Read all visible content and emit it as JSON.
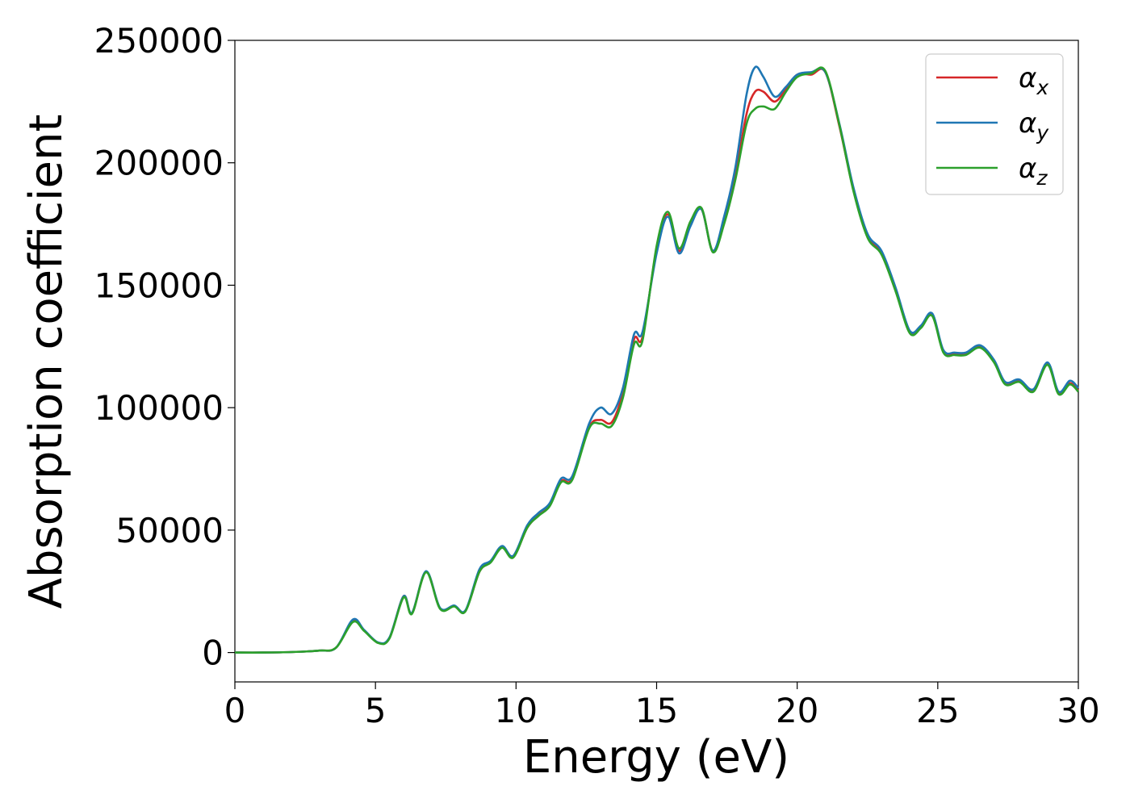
{
  "chart_data": {
    "type": "line",
    "title": "",
    "xlabel": "Energy (eV)",
    "ylabel": "Absorption coefficient",
    "xlim": [
      0,
      30
    ],
    "ylim": [
      -12000,
      250000
    ],
    "xticks": [
      0,
      5,
      10,
      15,
      20,
      25,
      30
    ],
    "yticks": [
      0,
      50000,
      100000,
      150000,
      200000,
      250000
    ],
    "grid": false,
    "legend": {
      "placement": "top-right"
    },
    "x": [
      0,
      1,
      2,
      3,
      3.6,
      4.2,
      4.6,
      5.1,
      5.5,
      6.0,
      6.3,
      6.8,
      7.3,
      7.8,
      8.2,
      8.7,
      9.1,
      9.5,
      9.9,
      10.4,
      10.8,
      11.2,
      11.6,
      12.0,
      12.6,
      13.0,
      13.4,
      13.8,
      14.2,
      14.5,
      15.0,
      15.4,
      15.8,
      16.2,
      16.6,
      17.0,
      17.4,
      17.8,
      18.2,
      18.5,
      18.8,
      19.2,
      19.6,
      20.0,
      20.5,
      21.0,
      21.5,
      22.0,
      22.5,
      23.0,
      23.5,
      24.0,
      24.4,
      24.8,
      25.2,
      25.6,
      26.0,
      26.5,
      27.0,
      27.4,
      27.9,
      28.4,
      28.9,
      29.3,
      29.7,
      30.0
    ],
    "series": [
      {
        "name": "α_x",
        "color": "#d62728",
        "values": [
          0,
          0,
          200,
          800,
          2000,
          13000,
          9000,
          4000,
          6000,
          23000,
          16000,
          33000,
          18000,
          19000,
          17000,
          33000,
          37000,
          43000,
          39000,
          51000,
          56000,
          60000,
          70000,
          71000,
          92000,
          95000,
          94000,
          106000,
          128000,
          129000,
          165000,
          179000,
          164000,
          175000,
          181000,
          164000,
          176000,
          195000,
          220000,
          229000,
          229000,
          225000,
          230000,
          236000,
          236000,
          237000,
          215000,
          189000,
          170000,
          163000,
          148000,
          131000,
          133000,
          138000,
          123000,
          122000,
          122000,
          125000,
          119000,
          110000,
          111000,
          107000,
          118000,
          106000,
          110000,
          107000
        ]
      },
      {
        "name": "α_y",
        "color": "#1f77b4",
        "values": [
          0,
          0,
          200,
          800,
          2000,
          13500,
          9200,
          4100,
          6200,
          23000,
          16200,
          33200,
          18200,
          19200,
          17200,
          34000,
          37500,
          43500,
          39500,
          52000,
          57000,
          61000,
          71000,
          72000,
          93500,
          100000,
          97500,
          108000,
          130000,
          131000,
          163000,
          178000,
          163000,
          174000,
          181000,
          164000,
          178000,
          198000,
          228000,
          239000,
          235000,
          227000,
          231000,
          236000,
          237000,
          237000,
          216000,
          190000,
          171000,
          164000,
          149000,
          131500,
          133500,
          138500,
          123500,
          122500,
          122500,
          125500,
          119500,
          110500,
          111500,
          107500,
          118500,
          106500,
          111000,
          108000
        ]
      },
      {
        "name": "α_z",
        "color": "#2ca02c",
        "values": [
          0,
          0,
          200,
          800,
          2000,
          12500,
          8800,
          3900,
          5800,
          22500,
          15800,
          32800,
          17800,
          18800,
          16800,
          33000,
          36800,
          42800,
          38800,
          51000,
          55800,
          59800,
          69500,
          70500,
          91500,
          93500,
          92500,
          104000,
          126000,
          127500,
          166000,
          180000,
          165000,
          176000,
          181500,
          163500,
          175000,
          193000,
          216000,
          222000,
          223000,
          222000,
          229000,
          235000,
          236500,
          237500,
          215500,
          188500,
          169500,
          162500,
          147500,
          130500,
          132500,
          137500,
          122500,
          121500,
          121500,
          124500,
          118500,
          109500,
          110500,
          106500,
          117500,
          105500,
          109500,
          106500
        ]
      }
    ]
  }
}
